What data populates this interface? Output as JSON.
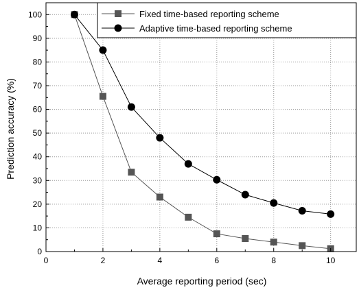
{
  "chart_data": {
    "type": "line",
    "xlabel": "Average reporting period (sec)",
    "ylabel": "Prediction accuracy (%)",
    "xlim": [
      0,
      10.9
    ],
    "ylim": [
      0,
      105
    ],
    "x_ticks": [
      0,
      2,
      4,
      6,
      8,
      10
    ],
    "y_ticks": [
      0,
      10,
      20,
      30,
      40,
      50,
      60,
      70,
      80,
      90,
      100
    ],
    "grid": true,
    "legend_position": "top-right",
    "series": [
      {
        "name": "Fixed time-based reporting scheme",
        "marker": "square",
        "color": "#555555",
        "x": [
          1,
          2,
          3,
          4,
          5,
          6,
          7,
          8,
          9,
          10
        ],
        "y": [
          100,
          65.5,
          33.5,
          23,
          14.5,
          7.5,
          5.5,
          4,
          2.5,
          1.2
        ]
      },
      {
        "name": "Adaptive time-based reporting scheme",
        "marker": "circle",
        "color": "#000000",
        "x": [
          1,
          2,
          3,
          4,
          5,
          6,
          7,
          8,
          9,
          10
        ],
        "y": [
          100,
          85,
          61,
          48,
          37,
          30.3,
          24,
          20.5,
          17.2,
          15.8
        ]
      }
    ]
  }
}
